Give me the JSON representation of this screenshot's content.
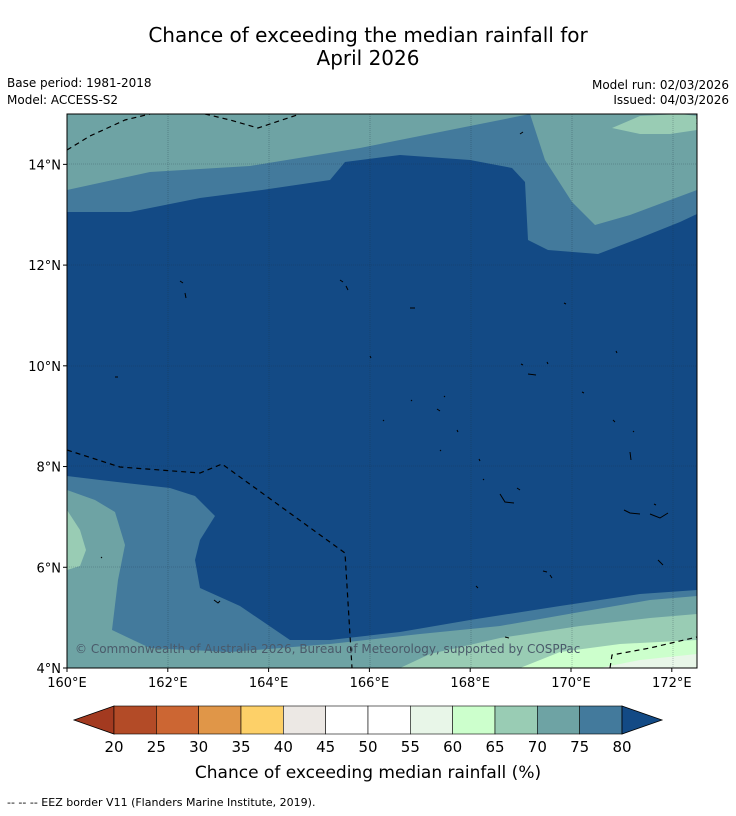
{
  "title_line1": "Chance of exceeding the median rainfall for",
  "title_line2": "April 2026",
  "base_period": "Base period: 1981-2018",
  "model": "Model: ACCESS-S2",
  "model_run": "Model run: 02/03/2026",
  "issued": "Issued: 04/03/2026",
  "copyright": "© Commonwealth of Australia 2026, Bureau of Meteorology, supported by COSPPac",
  "footnote": "--  --  -- EEZ border V11 (Flanders Marine Institute, 2019).",
  "map": {
    "lon_range": [
      160,
      172.5
    ],
    "lat_range": [
      4,
      15
    ],
    "x_ticks": [
      "160°E",
      "162°E",
      "164°E",
      "166°E",
      "168°E",
      "170°E",
      "172°E"
    ],
    "x_tick_values": [
      160,
      162,
      164,
      166,
      168,
      170,
      172
    ],
    "y_ticks": [
      "4°N",
      "6°N",
      "8°N",
      "10°N",
      "12°N",
      "14°N"
    ],
    "y_tick_values": [
      4,
      6,
      8,
      10,
      12,
      14
    ],
    "dominant_category": "> 80%"
  },
  "colorbar": {
    "title": "Chance of exceeding median rainfall (%)",
    "labels": [
      "20",
      "25",
      "30",
      "35",
      "40",
      "45",
      "50",
      "55",
      "60",
      "65",
      "70",
      "75",
      "80"
    ],
    "colors": [
      "#a33a20",
      "#b34b27",
      "#cc6633",
      "#e09648",
      "#fdd068",
      "#ece8e4",
      "#ffffff",
      "#ffffff",
      "#e8f6e8",
      "#ccffcc",
      "#99ccb4",
      "#6ea3a4",
      "#437a9c"
    ],
    "under_color": "#a33a20",
    "over_color": "#134a85"
  },
  "colors": {
    "c80plus": "#134a85",
    "c75": "#437a9c",
    "c70": "#6ea3a4",
    "c65": "#99ccb4",
    "c60": "#ccffcc",
    "c55": "#e8f6e8"
  }
}
